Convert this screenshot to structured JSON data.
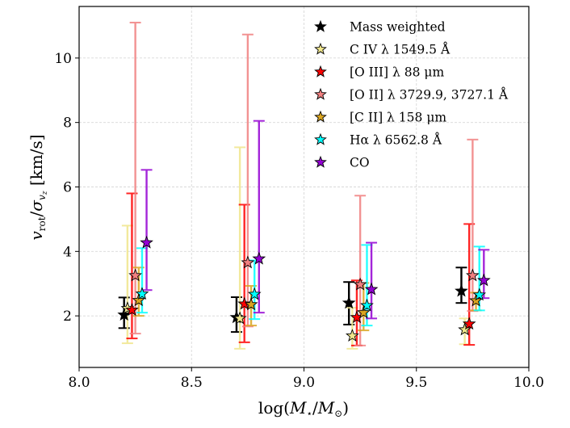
{
  "chart_data": {
    "type": "scatter",
    "title": "",
    "xlabel": "log(M⋆/M⊙)",
    "ylabel": "v_rot/σ_vz [km/s]",
    "xlim": [
      8.0,
      10.0
    ],
    "ylim": [
      0.4,
      11.6
    ],
    "grid": true,
    "legend_position": "top-right",
    "xticks": [
      {
        "value": 8.0,
        "label": "8.0"
      },
      {
        "value": 8.5,
        "label": "8.5"
      },
      {
        "value": 9.0,
        "label": "9.0"
      },
      {
        "value": 9.5,
        "label": "9.5"
      },
      {
        "value": 10.0,
        "label": "10.0"
      }
    ],
    "yticks": [
      {
        "value": 2,
        "label": "2"
      },
      {
        "value": 4,
        "label": "4"
      },
      {
        "value": 6,
        "label": "6"
      },
      {
        "value": 8,
        "label": "8"
      },
      {
        "value": 10,
        "label": "10"
      }
    ],
    "series": [
      {
        "name": "Mass weighted",
        "marker_color": "#000000",
        "errorbar_color": "#000000",
        "points": [
          {
            "x": 8.2,
            "y": 2.03,
            "lo": 1.62,
            "hi": 2.57
          },
          {
            "x": 8.7,
            "y": 1.95,
            "lo": 1.5,
            "hi": 2.58
          },
          {
            "x": 9.2,
            "y": 2.4,
            "lo": 1.73,
            "hi": 3.05
          },
          {
            "x": 9.7,
            "y": 2.77,
            "lo": 2.4,
            "hi": 3.5
          }
        ]
      },
      {
        "name": "C IV λ 1549.5 Å",
        "marker_color": "#f0e68c",
        "errorbar_color": "#f0e68c",
        "points": [
          {
            "x": 8.215,
            "y": 2.23,
            "lo": 1.15,
            "hi": 4.8
          },
          {
            "x": 8.715,
            "y": 1.92,
            "lo": 0.98,
            "hi": 7.23
          },
          {
            "x": 9.215,
            "y": 1.38,
            "lo": 0.98,
            "hi": 2.25
          },
          {
            "x": 9.715,
            "y": 1.57,
            "lo": 1.12,
            "hi": 1.92
          }
        ]
      },
      {
        "name": "[O III] λ 88 μm",
        "marker_color": "#ff0000",
        "errorbar_color": "#ff0000",
        "points": [
          {
            "x": 8.235,
            "y": 2.18,
            "lo": 1.3,
            "hi": 5.8
          },
          {
            "x": 8.735,
            "y": 2.37,
            "lo": 1.18,
            "hi": 5.45
          },
          {
            "x": 9.235,
            "y": 1.95,
            "lo": 1.08,
            "hi": 3.1
          },
          {
            "x": 9.735,
            "y": 1.75,
            "lo": 1.1,
            "hi": 4.85
          }
        ]
      },
      {
        "name": "[O II] λ 3729.9, 3727.1 Å",
        "marker_color": "#f08080",
        "errorbar_color": "#f08080",
        "points": [
          {
            "x": 8.25,
            "y": 3.25,
            "lo": 1.45,
            "hi": 11.1
          },
          {
            "x": 8.75,
            "y": 3.65,
            "lo": 1.67,
            "hi": 10.73
          },
          {
            "x": 9.25,
            "y": 2.97,
            "lo": 1.08,
            "hi": 5.73
          },
          {
            "x": 9.75,
            "y": 3.25,
            "lo": 2.15,
            "hi": 7.47
          }
        ]
      },
      {
        "name": "[C II] λ 158 μm",
        "marker_color": "#daa520",
        "errorbar_color": "#daa520",
        "points": [
          {
            "x": 8.265,
            "y": 2.48,
            "lo": 2.0,
            "hi": 3.5
          },
          {
            "x": 8.765,
            "y": 2.35,
            "lo": 1.7,
            "hi": 2.93
          },
          {
            "x": 9.265,
            "y": 2.1,
            "lo": 1.55,
            "hi": 3.02
          },
          {
            "x": 9.765,
            "y": 2.47,
            "lo": 2.17,
            "hi": 2.72
          }
        ]
      },
      {
        "name": "Hα λ 6562.8 Å",
        "marker_color": "#00ffff",
        "errorbar_color": "#00ffff",
        "points": [
          {
            "x": 8.28,
            "y": 2.68,
            "lo": 2.1,
            "hi": 4.1
          },
          {
            "x": 8.78,
            "y": 2.67,
            "lo": 1.9,
            "hi": 3.72
          },
          {
            "x": 9.28,
            "y": 2.32,
            "lo": 1.7,
            "hi": 4.2
          },
          {
            "x": 9.78,
            "y": 2.65,
            "lo": 2.17,
            "hi": 4.15
          }
        ]
      },
      {
        "name": "CO",
        "marker_color": "#9400d3",
        "errorbar_color": "#9400d3",
        "points": [
          {
            "x": 8.3,
            "y": 4.27,
            "lo": 2.8,
            "hi": 6.53
          },
          {
            "x": 8.8,
            "y": 3.77,
            "lo": 2.1,
            "hi": 8.05
          },
          {
            "x": 9.3,
            "y": 2.82,
            "lo": 1.92,
            "hi": 4.27
          },
          {
            "x": 9.8,
            "y": 3.1,
            "lo": 2.55,
            "hi": 4.05
          }
        ]
      }
    ]
  }
}
